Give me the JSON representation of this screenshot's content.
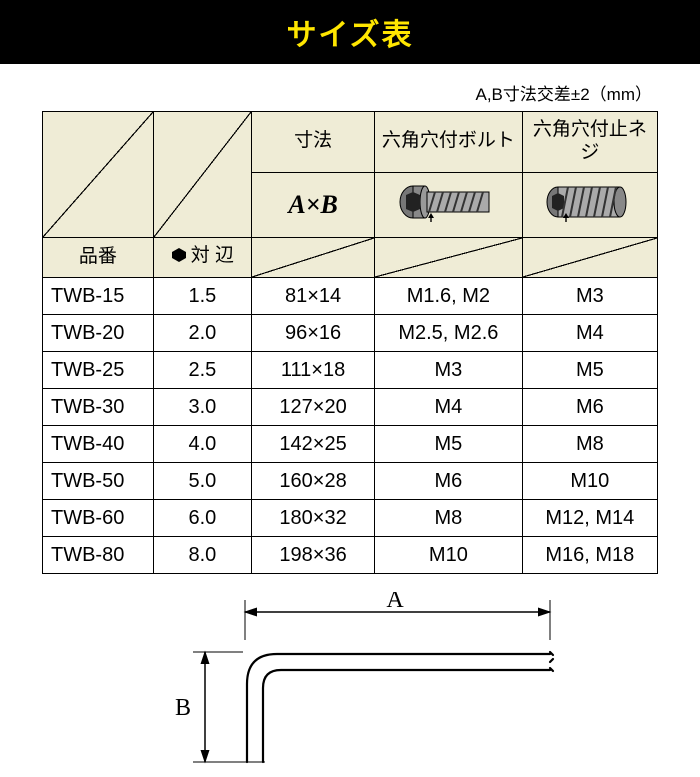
{
  "title": "サイズ表",
  "tolerance_note": "A,B寸法交差±2（mm）",
  "headers": {
    "part_no": "品番",
    "across_flats": "対 辺",
    "dimension": "寸法",
    "dimension_sub": "A×B",
    "bolt": "六角穴付ボルト",
    "set_screw": "六角穴付止ネジ"
  },
  "diagram": {
    "label_a": "A",
    "label_b": "B"
  },
  "rows": [
    {
      "pn": "TWB-15",
      "af": "1.5",
      "dim": "81×14",
      "bolt": "M1.6, M2",
      "set": "M3"
    },
    {
      "pn": "TWB-20",
      "af": "2.0",
      "dim": "96×16",
      "bolt": "M2.5, M2.6",
      "set": "M4"
    },
    {
      "pn": "TWB-25",
      "af": "2.5",
      "dim": "111×18",
      "bolt": "M3",
      "set": "M5"
    },
    {
      "pn": "TWB-30",
      "af": "3.0",
      "dim": "127×20",
      "bolt": "M4",
      "set": "M6"
    },
    {
      "pn": "TWB-40",
      "af": "4.0",
      "dim": "142×25",
      "bolt": "M5",
      "set": "M8"
    },
    {
      "pn": "TWB-50",
      "af": "5.0",
      "dim": "160×28",
      "bolt": "M6",
      "set": "M10"
    },
    {
      "pn": "TWB-60",
      "af": "6.0",
      "dim": "180×32",
      "bolt": "M8",
      "set": "M12, M14"
    },
    {
      "pn": "TWB-80",
      "af": "8.0",
      "dim": "198×36",
      "bolt": "M10",
      "set": "M16, M18"
    }
  ],
  "colors": {
    "title_bg": "#000000",
    "title_fg": "#ffe600",
    "header_bg": "#efecd6",
    "border": "#000000"
  }
}
